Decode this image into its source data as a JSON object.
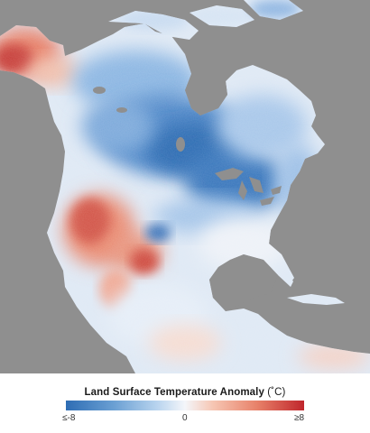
{
  "legend": {
    "title": "Land Surface Temperature Anomaly",
    "unit": "(˚C)",
    "tick_min": "≤-8",
    "tick_mid": "0",
    "tick_max": "≥8"
  },
  "colors": {
    "ocean": "#8f8f8f",
    "cold": "#2e6db4",
    "neutral": "#f4f6fa",
    "warm": "#c0262c"
  }
}
